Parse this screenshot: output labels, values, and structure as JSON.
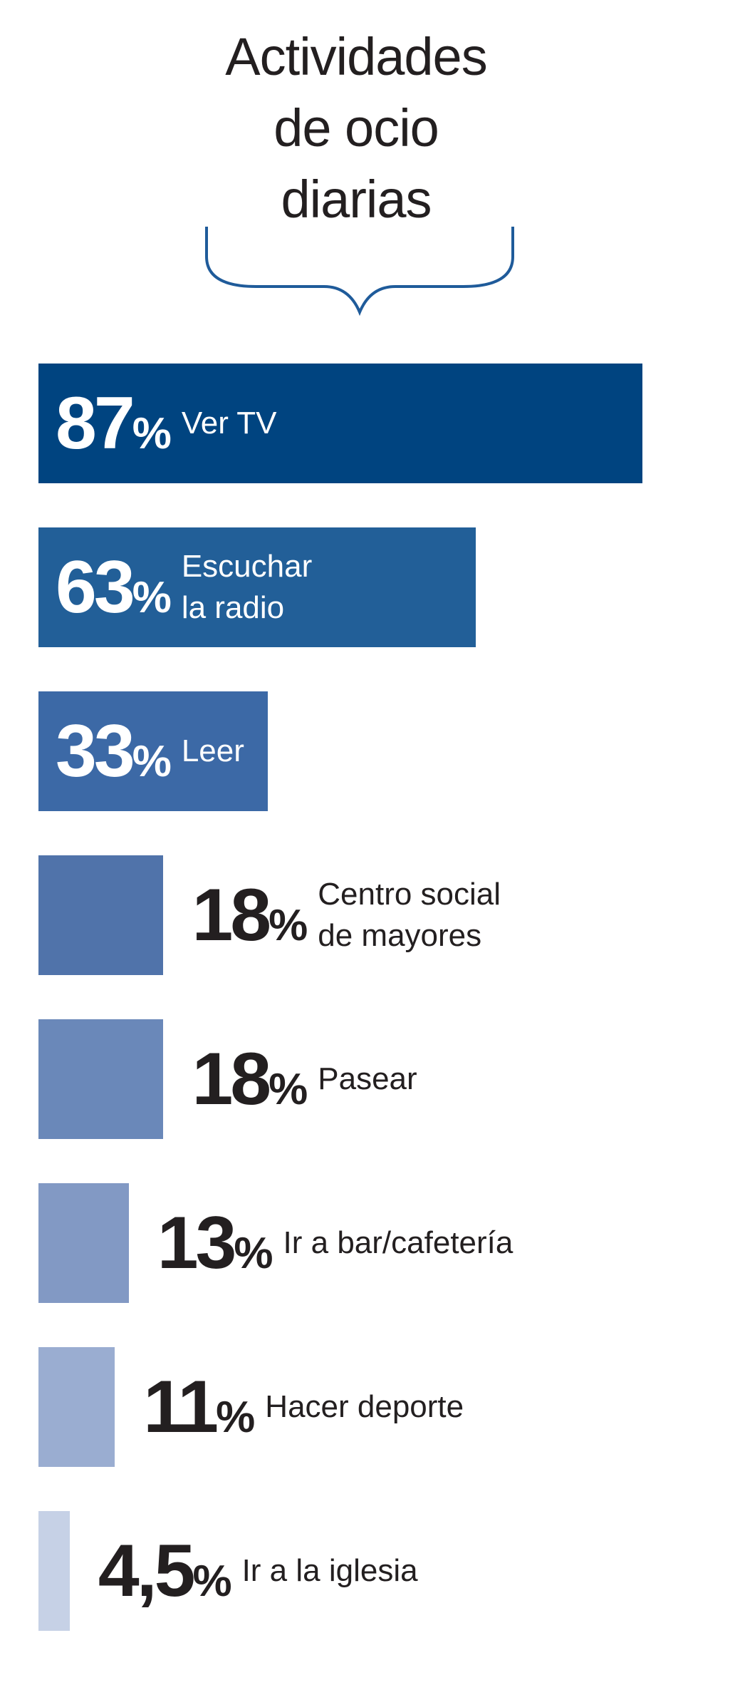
{
  "chart_data": {
    "type": "bar",
    "orientation": "horizontal",
    "title_lines": [
      "Actividades",
      "de ocio",
      "diarias"
    ],
    "xlim": [
      0,
      100
    ],
    "unit": "%",
    "categories": [
      [
        "Ver TV"
      ],
      [
        "Escuchar",
        "la radio"
      ],
      [
        "Leer"
      ],
      [
        "Centro social",
        "de mayores"
      ],
      [
        "Pasear"
      ],
      [
        "Ir a bar/cafetería"
      ],
      [
        "Hacer deporte"
      ],
      [
        "Ir a la iglesia"
      ]
    ],
    "values": [
      87,
      63,
      33,
      18,
      18,
      13,
      11,
      4.5
    ],
    "value_labels": [
      "87",
      "63",
      "33",
      "18",
      "18",
      "13",
      "11",
      "4,5"
    ],
    "colors": [
      "#004480",
      "#225f98",
      "#3c69a6",
      "#5073aa",
      "#6a88b9",
      "#8299c4",
      "#9aadd1",
      "#c6d1e6"
    ]
  }
}
